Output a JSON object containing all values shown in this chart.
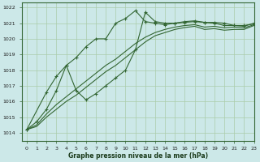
{
  "title": "Graphe pression niveau de la mer (hPa)",
  "bg_color": "#cce8e8",
  "grid_color": "#aaccaa",
  "line_color": "#336633",
  "xlim": [
    -0.5,
    23
  ],
  "ylim": [
    1013.5,
    1022.3
  ],
  "yticks": [
    1014,
    1015,
    1016,
    1017,
    1018,
    1019,
    1020,
    1021,
    1022
  ],
  "xticks": [
    0,
    1,
    2,
    3,
    4,
    5,
    6,
    7,
    8,
    9,
    10,
    11,
    12,
    13,
    14,
    15,
    16,
    17,
    18,
    19,
    20,
    21,
    22,
    23
  ],
  "series": [
    {
      "x": [
        0,
        1,
        2,
        3,
        4,
        5,
        6,
        7,
        8,
        9,
        10,
        11,
        12,
        13,
        14,
        15,
        16,
        17,
        18,
        19,
        20,
        21,
        22,
        23
      ],
      "y": [
        1014.2,
        1014.7,
        1015.5,
        1016.7,
        1018.3,
        1018.8,
        1019.5,
        1020.0,
        1020.0,
        1021.0,
        1021.3,
        1021.8,
        1021.1,
        1021.0,
        1020.9,
        1021.0,
        1021.05,
        1021.1,
        1021.05,
        1021.0,
        1020.85,
        1020.85,
        1020.8,
        1021.0
      ],
      "marker": true
    },
    {
      "x": [
        0,
        2,
        3,
        4,
        5,
        6,
        7,
        8,
        9,
        10,
        11,
        12,
        13,
        14,
        15,
        16,
        17,
        18,
        19,
        20,
        21,
        22,
        23
      ],
      "y": [
        1014.2,
        1016.6,
        1017.6,
        1018.3,
        1016.7,
        1016.1,
        1016.5,
        1017.0,
        1017.5,
        1018.0,
        1019.3,
        1021.7,
        1021.1,
        1021.0,
        1021.0,
        1021.1,
        1021.15,
        1021.05,
        1021.05,
        1021.0,
        1020.85,
        1020.85,
        1020.95
      ],
      "marker": true
    },
    {
      "x": [
        0,
        1,
        2,
        3,
        4,
        5,
        6,
        7,
        8,
        9,
        10,
        11,
        12,
        13,
        14,
        15,
        16,
        17,
        18,
        19,
        20,
        21,
        22,
        23
      ],
      "y": [
        1014.2,
        1014.5,
        1015.2,
        1015.8,
        1016.3,
        1016.8,
        1017.3,
        1017.8,
        1018.3,
        1018.7,
        1019.2,
        1019.7,
        1020.1,
        1020.4,
        1020.6,
        1020.75,
        1020.85,
        1020.9,
        1020.75,
        1020.8,
        1020.7,
        1020.75,
        1020.7,
        1020.9
      ],
      "marker": false
    },
    {
      "x": [
        0,
        1,
        2,
        3,
        4,
        5,
        6,
        7,
        8,
        9,
        10,
        11,
        12,
        13,
        14,
        15,
        16,
        17,
        18,
        19,
        20,
        21,
        22,
        23
      ],
      "y": [
        1014.2,
        1014.4,
        1015.0,
        1015.5,
        1016.0,
        1016.4,
        1016.9,
        1017.4,
        1017.9,
        1018.3,
        1018.8,
        1019.3,
        1019.8,
        1020.2,
        1020.4,
        1020.6,
        1020.72,
        1020.8,
        1020.6,
        1020.65,
        1020.55,
        1020.6,
        1020.6,
        1020.85
      ],
      "marker": false
    }
  ]
}
